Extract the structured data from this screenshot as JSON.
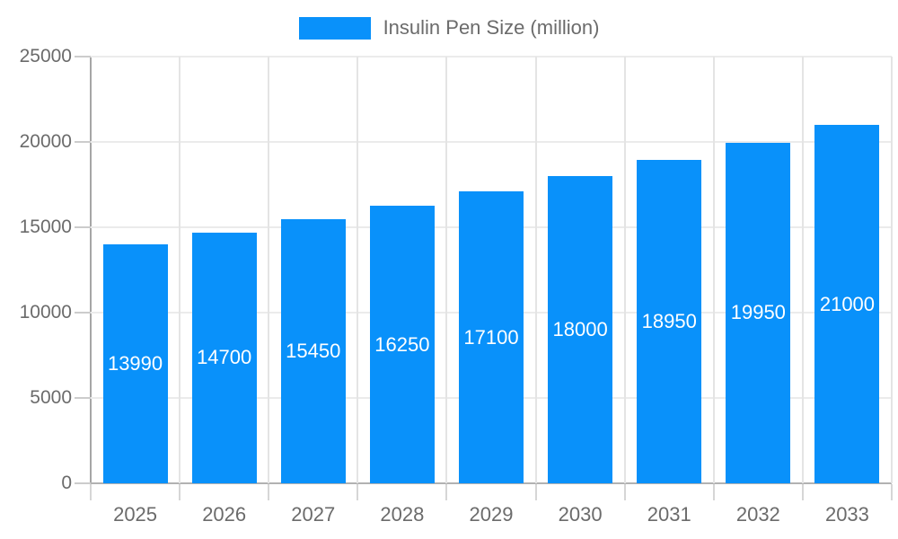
{
  "legend": {
    "label": "Insulin Pen Size (million)"
  },
  "chart_data": {
    "type": "bar",
    "title": "",
    "categories": [
      "2025",
      "2026",
      "2027",
      "2028",
      "2029",
      "2030",
      "2031",
      "2032",
      "2033"
    ],
    "series": [
      {
        "name": "Insulin Pen Size (million)",
        "values": [
          13990,
          14700,
          15450,
          16250,
          17100,
          18000,
          18950,
          19950,
          21000
        ]
      }
    ],
    "xlabel": "",
    "ylabel": "",
    "ylim": [
      0,
      25000
    ],
    "ytick_step": 5000,
    "ytick_labels": [
      "0",
      "5000",
      "10000",
      "15000",
      "20000",
      "25000"
    ],
    "grid": true,
    "legend_position": "top",
    "data_labels": "inside-center",
    "colors": {
      "bar": "#0991FA",
      "value_label": "#ffffff",
      "axis_text": "#6b6b6b",
      "legend_text": "#6b6b6b",
      "gridline": "#ebebeb",
      "axis_line": "#a6a6a6"
    }
  }
}
